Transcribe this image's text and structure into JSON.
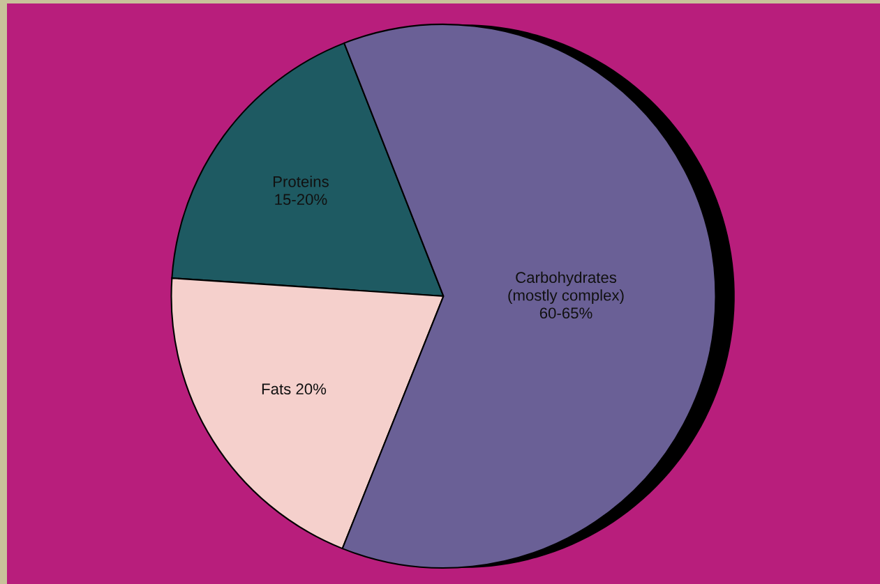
{
  "chart_data": {
    "type": "pie",
    "categories": [
      "Proteins 15-20%",
      "Fats 20%",
      "Carbohydrates (mostly complex) 60-65%"
    ],
    "values": [
      18,
      20,
      62
    ],
    "colors": [
      "#1e5a62",
      "#f5d0cc",
      "#6a6096"
    ]
  }
}
